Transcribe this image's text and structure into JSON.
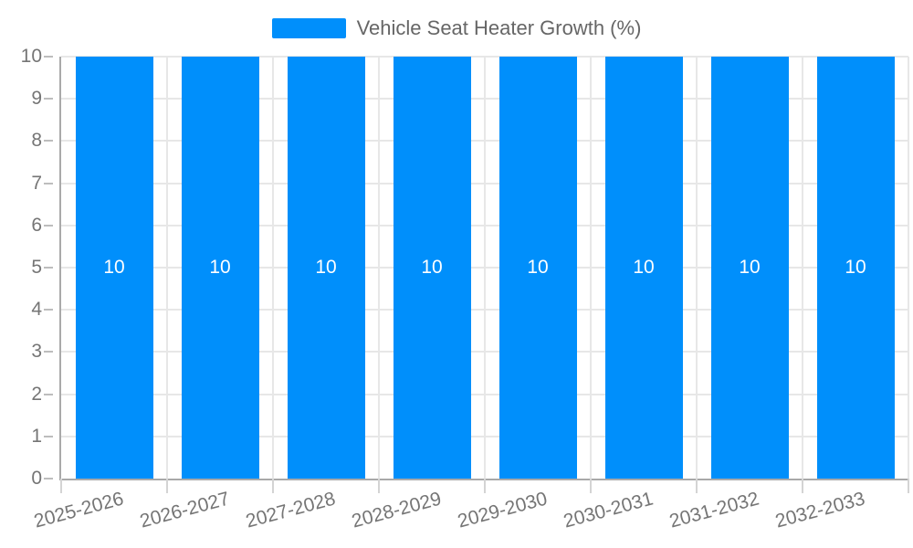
{
  "chart_data": {
    "type": "bar",
    "title": "Vehicle Seat Heater Growth (%)",
    "categories": [
      "2025-2026",
      "2026-2027",
      "2027-2028",
      "2028-2029",
      "2029-2030",
      "2030-2031",
      "2031-2032",
      "2032-2033"
    ],
    "series": [
      {
        "name": "Vehicle Seat Heater Growth (%)",
        "values": [
          10,
          10,
          10,
          10,
          10,
          10,
          10,
          10
        ]
      }
    ],
    "values": [
      10,
      10,
      10,
      10,
      10,
      10,
      10,
      10
    ],
    "bar_labels": [
      "10",
      "10",
      "10",
      "10",
      "10",
      "10",
      "10",
      "10"
    ],
    "xlabel": "",
    "ylabel": "",
    "ylim": [
      0,
      10
    ],
    "yticks": [
      0,
      1,
      2,
      3,
      4,
      5,
      6,
      7,
      8,
      9,
      10
    ],
    "grid": true,
    "legend_position": "top",
    "colors": {
      "bar": "#008FFB",
      "bar_label_text": "#ffffff",
      "gridline": "#e7e7e7",
      "axis_line": "#a9a9a9",
      "tick": "#c9c9c9",
      "axis_label_text": "#757575",
      "legend_text": "#666666"
    }
  },
  "legend": {
    "label": "Vehicle Seat Heater Growth (%)",
    "swatch_color": "#008FFB"
  }
}
